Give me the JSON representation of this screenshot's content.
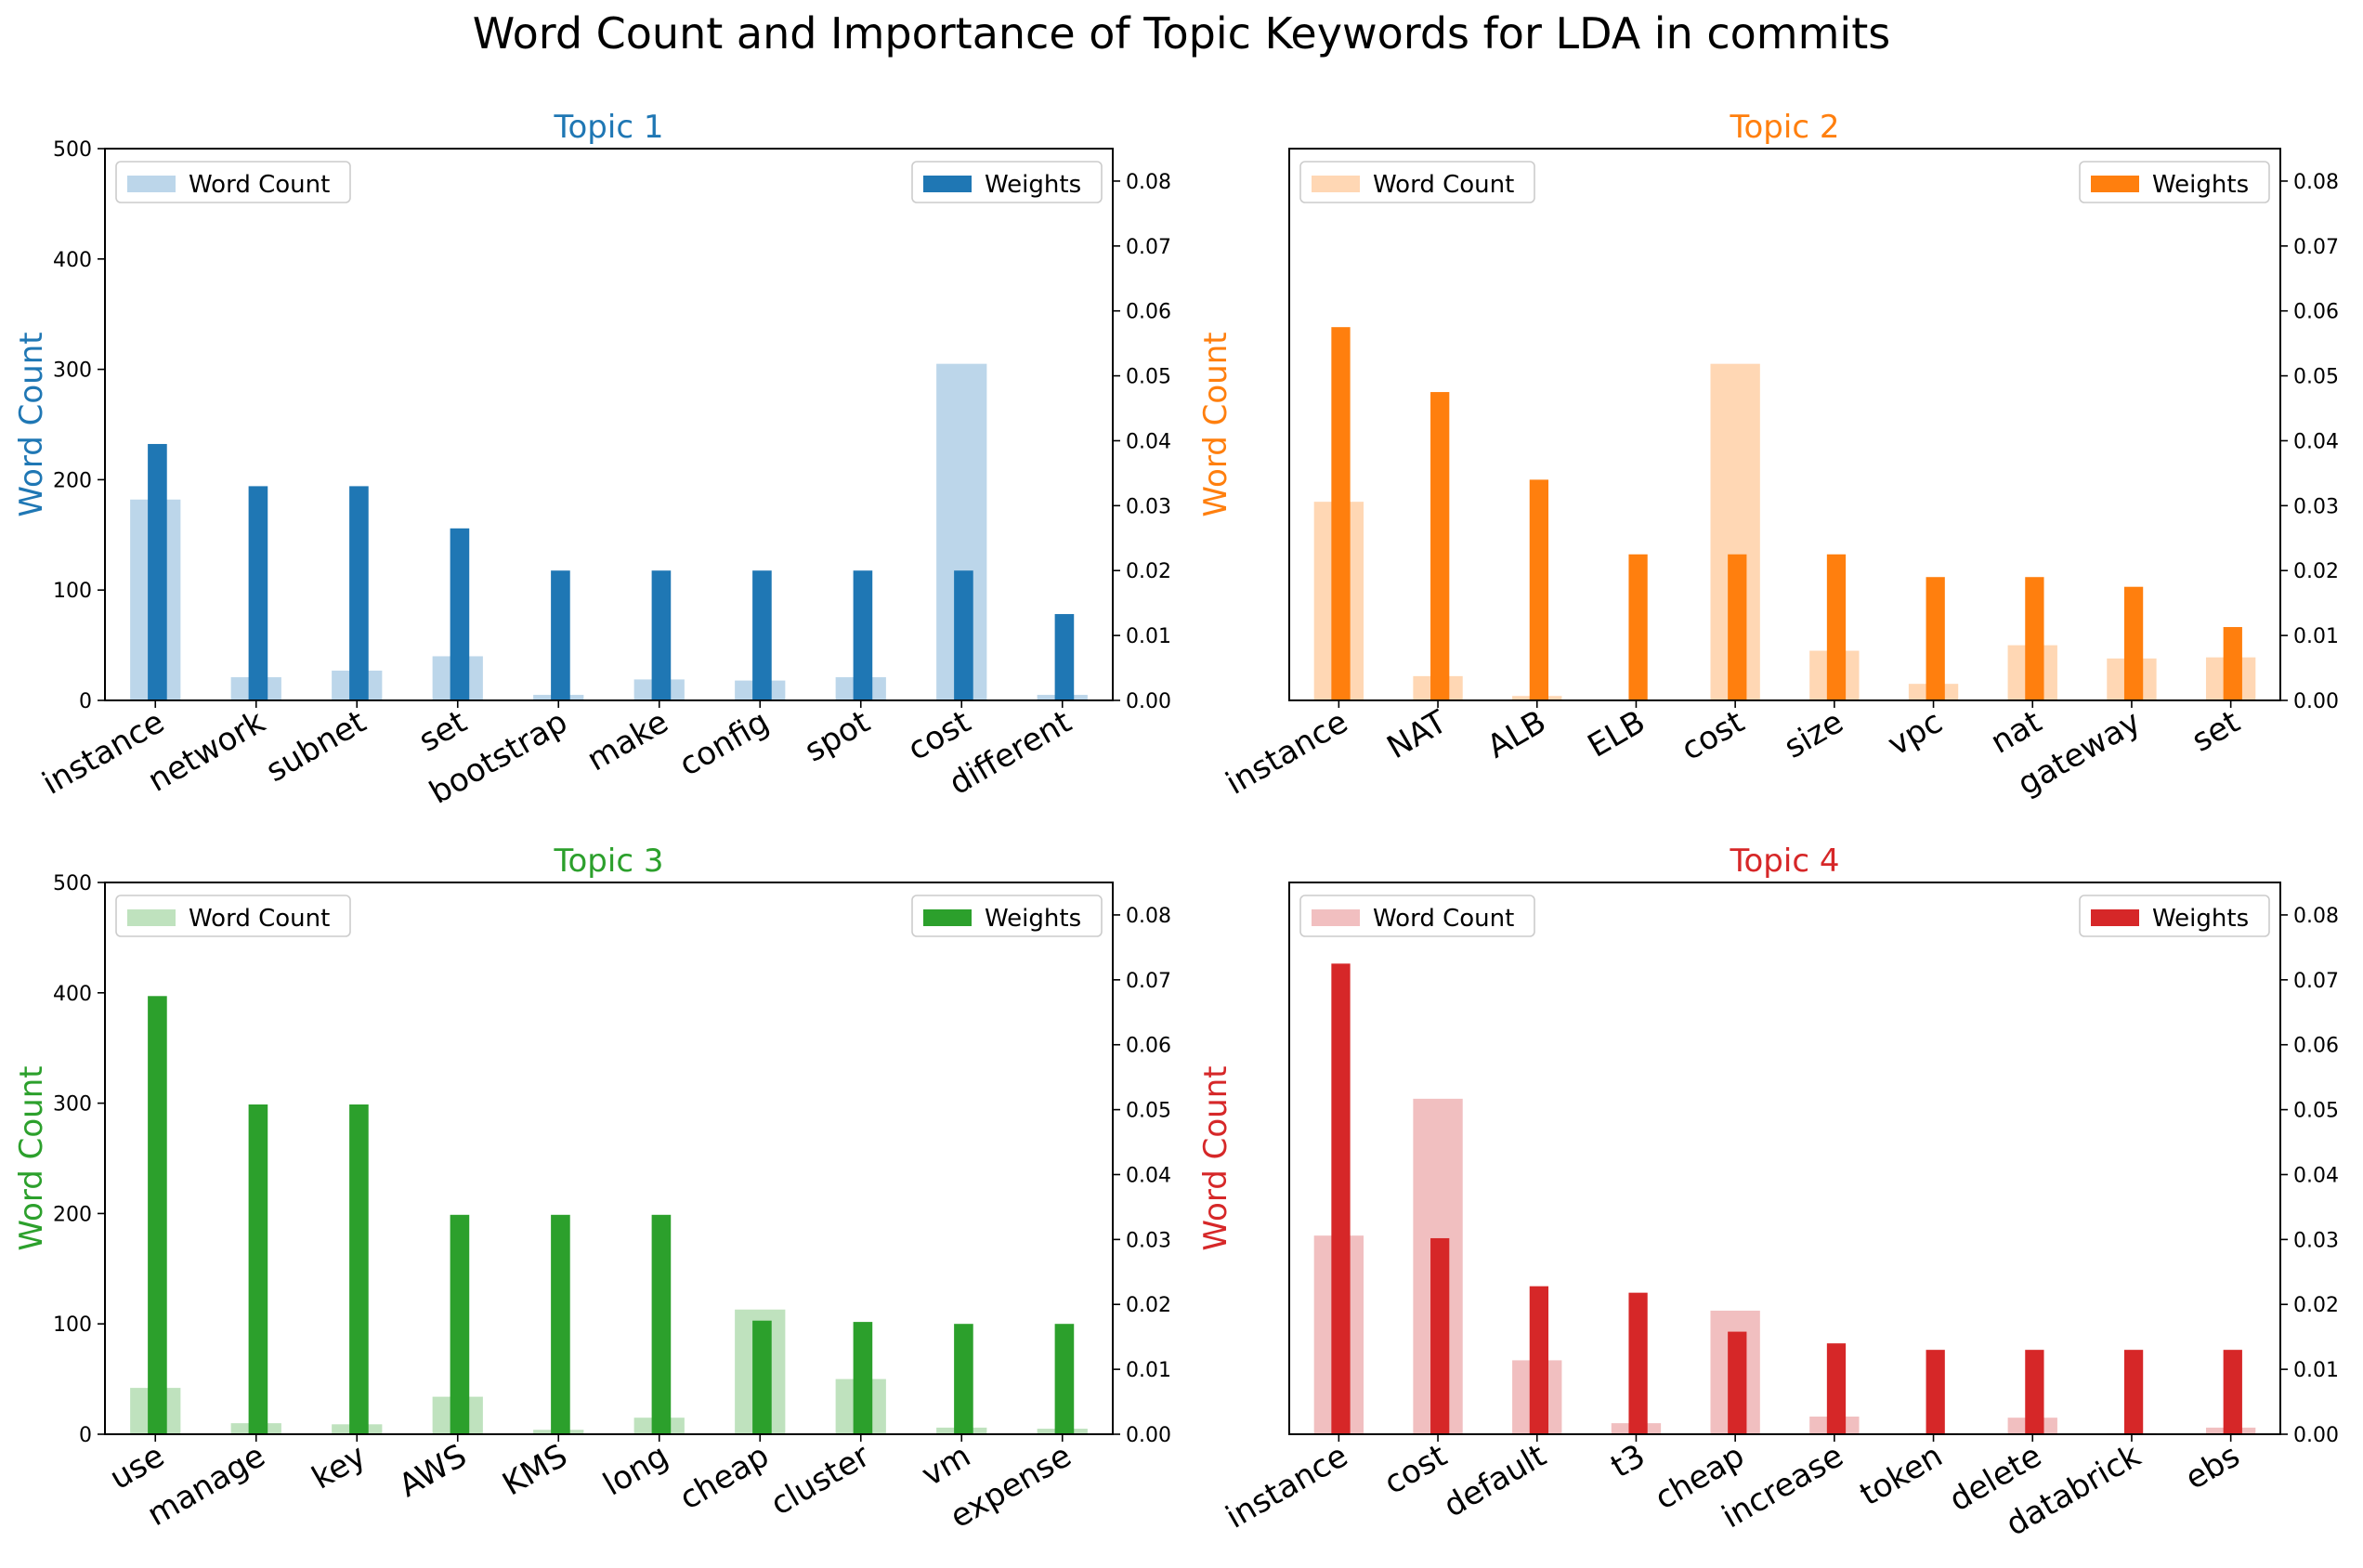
{
  "figure": {
    "title": "Word Count and Importance of Topic Keywords for LDA in commits"
  },
  "legend_labels": {
    "word_count": "Word Count",
    "weights": "Weights"
  },
  "axis_labels": {
    "ylabel": "Word Count"
  },
  "chart_data": [
    {
      "type": "bar",
      "title": "Topic 1",
      "color": "#1f77b4",
      "light_color": "#bcd6ea",
      "ylabel": "Word Count",
      "ylim": [
        0,
        500
      ],
      "y2lim": [
        0,
        0.085
      ],
      "categories": [
        "instance",
        "network",
        "subnet",
        "set",
        "bootstrap",
        "make",
        "config",
        "spot",
        "cost",
        "different"
      ],
      "series": [
        {
          "name": "Word Count",
          "axis": "left",
          "values": [
            182,
            21,
            27,
            40,
            5,
            19,
            18,
            21,
            305,
            5
          ]
        },
        {
          "name": "Weights",
          "axis": "right",
          "values": [
            0.0395,
            0.033,
            0.033,
            0.0265,
            0.02,
            0.02,
            0.02,
            0.02,
            0.02,
            0.0133
          ]
        }
      ],
      "y_ticks": [
        0,
        100,
        200,
        300,
        400,
        500
      ],
      "y2_ticks": [
        0.0,
        0.01,
        0.02,
        0.03,
        0.04,
        0.05,
        0.06,
        0.07,
        0.08
      ],
      "legend_word_count": "top-left",
      "legend_weights": "top-right"
    },
    {
      "type": "bar",
      "title": "Topic 2",
      "color": "#ff7f0e",
      "light_color": "#ffd7b4",
      "ylabel": "Word Count",
      "ylim": [
        0,
        500
      ],
      "y2lim": [
        0,
        0.085
      ],
      "categories": [
        "instance",
        "NAT",
        "ALB",
        "ELB",
        "cost",
        "size",
        "vpc",
        "nat",
        "gateway",
        "set"
      ],
      "series": [
        {
          "name": "Word Count",
          "axis": "left",
          "values": [
            180,
            22,
            4,
            0,
            305,
            45,
            15,
            50,
            38,
            39
          ]
        },
        {
          "name": "Weights",
          "axis": "right",
          "values": [
            0.0575,
            0.0475,
            0.034,
            0.0225,
            0.0225,
            0.0225,
            0.019,
            0.019,
            0.0175,
            0.0113
          ]
        }
      ],
      "y_ticks": [
        0,
        100,
        200,
        300,
        400,
        500
      ],
      "y2_ticks": [
        0.0,
        0.01,
        0.02,
        0.03,
        0.04,
        0.05,
        0.06,
        0.07,
        0.08
      ],
      "legend_word_count": "top-left",
      "legend_weights": "top-right"
    },
    {
      "type": "bar",
      "title": "Topic 3",
      "color": "#2ca02c",
      "light_color": "#bfe2be",
      "ylabel": "Word Count",
      "ylim": [
        0,
        500
      ],
      "y2lim": [
        0,
        0.085
      ],
      "categories": [
        "use",
        "manage",
        "key",
        "AWS",
        "KMS",
        "long",
        "cheap",
        "cluster",
        "vm",
        "expense"
      ],
      "series": [
        {
          "name": "Word Count",
          "axis": "left",
          "values": [
            42,
            10,
            9,
            34,
            4,
            15,
            113,
            50,
            6,
            5
          ]
        },
        {
          "name": "Weights",
          "axis": "right",
          "values": [
            0.0675,
            0.0508,
            0.0508,
            0.0338,
            0.0338,
            0.0338,
            0.0175,
            0.0173,
            0.017,
            0.017
          ]
        }
      ],
      "y_ticks": [
        0,
        100,
        200,
        300,
        400,
        500
      ],
      "y2_ticks": [
        0.0,
        0.01,
        0.02,
        0.03,
        0.04,
        0.05,
        0.06,
        0.07,
        0.08
      ],
      "legend_word_count": "top-left",
      "legend_weights": "top-right"
    },
    {
      "type": "bar",
      "title": "Topic 4",
      "color": "#d62728",
      "light_color": "#f1bfc0",
      "ylabel": "Word Count",
      "ylim": [
        0,
        500
      ],
      "y2lim": [
        0,
        0.085
      ],
      "categories": [
        "instance",
        "cost",
        "default",
        "t3",
        "cheap",
        "increase",
        "token",
        "delete",
        "databrick",
        "ebs"
      ],
      "series": [
        {
          "name": "Word Count",
          "axis": "left",
          "values": [
            180,
            304,
            67,
            10,
            112,
            16,
            1,
            15,
            1,
            6
          ]
        },
        {
          "name": "Weights",
          "axis": "right",
          "values": [
            0.0725,
            0.0302,
            0.0228,
            0.0218,
            0.0158,
            0.014,
            0.013,
            0.013,
            0.013,
            0.013
          ]
        }
      ],
      "y_ticks": [
        0,
        100,
        200,
        300,
        400,
        500
      ],
      "y2_ticks": [
        0.0,
        0.01,
        0.02,
        0.03,
        0.04,
        0.05,
        0.06,
        0.07,
        0.08
      ],
      "legend_word_count": "top-left",
      "legend_weights": "top-right"
    }
  ]
}
